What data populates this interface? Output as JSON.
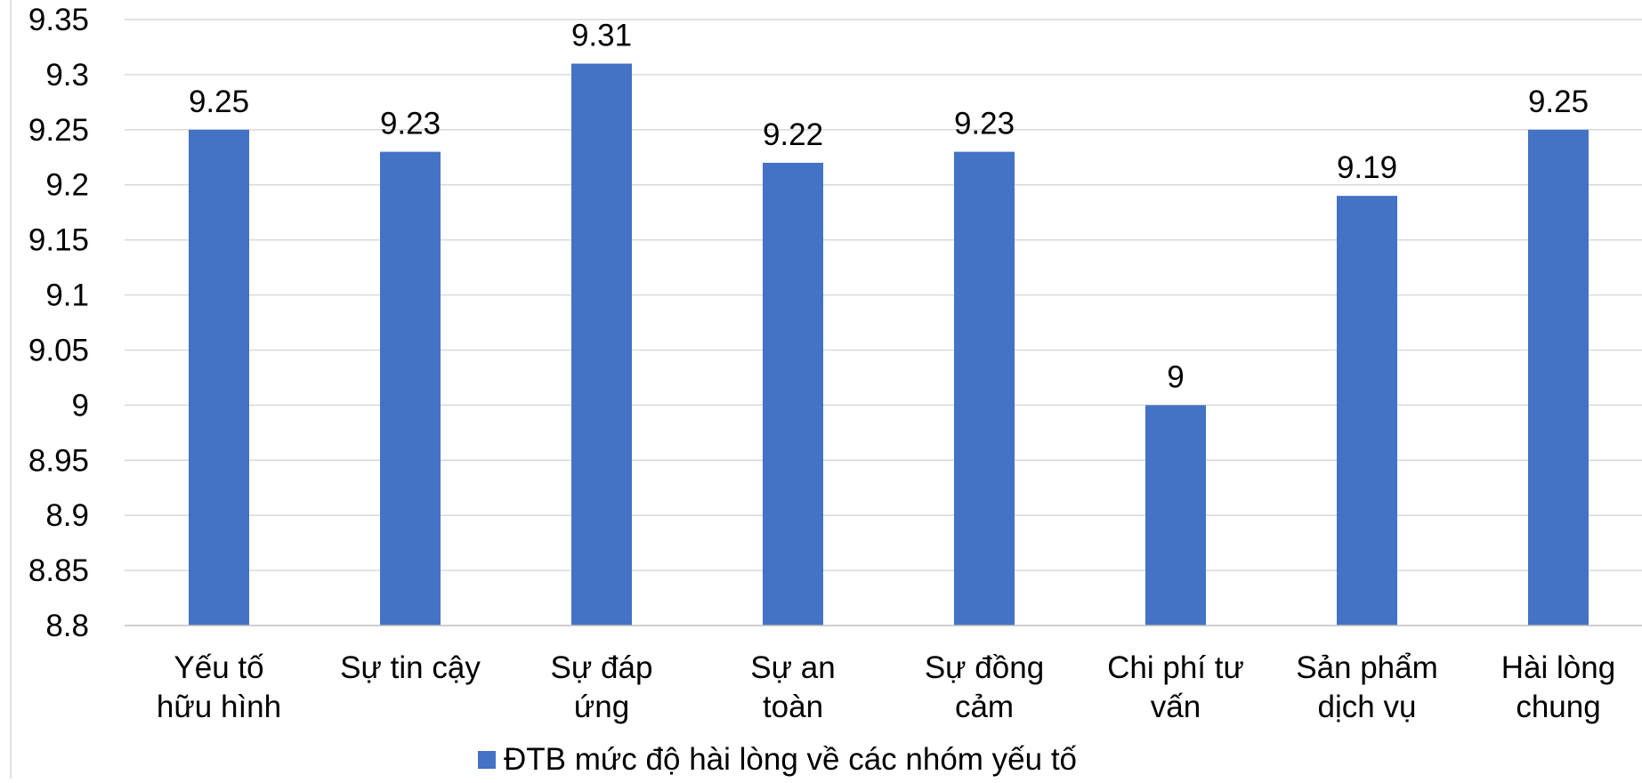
{
  "chart_data": {
    "type": "bar",
    "title": "",
    "xlabel": "",
    "ylabel": "",
    "categories": [
      [
        "Yếu tố",
        "hữu hình"
      ],
      [
        "Sự tin cậy"
      ],
      [
        "Sự đáp",
        "ứng"
      ],
      [
        "Sự an",
        "toàn"
      ],
      [
        "Sự đồng",
        "cảm"
      ],
      [
        "Chi phí tư",
        "vấn"
      ],
      [
        "Sản phẩm",
        "dịch vụ"
      ],
      [
        "Hài lòng",
        "chung"
      ]
    ],
    "series": [
      {
        "name": "ĐTB mức độ hài lòng về các nhóm yếu tố",
        "values": [
          9.25,
          9.23,
          9.31,
          9.22,
          9.23,
          9.0,
          9.19,
          9.25
        ],
        "value_labels": [
          "9.25",
          "9.23",
          "9.31",
          "9.22",
          "9.23",
          "9",
          "9.19",
          "9.25"
        ],
        "color": "#4472c4"
      }
    ],
    "ylim": [
      8.8,
      9.35
    ],
    "y_ticks": [
      9.35,
      9.3,
      9.25,
      9.2,
      9.15,
      9.1,
      9.05,
      9.0,
      8.95,
      8.9,
      8.85,
      8.8
    ],
    "y_tick_labels": [
      "9.35",
      "9.3",
      "9.25",
      "9.2",
      "9.15",
      "9.1",
      "9.05",
      "9",
      "8.95",
      "8.9",
      "8.85",
      "8.8"
    ],
    "grid": true,
    "legend_position": "bottom"
  }
}
